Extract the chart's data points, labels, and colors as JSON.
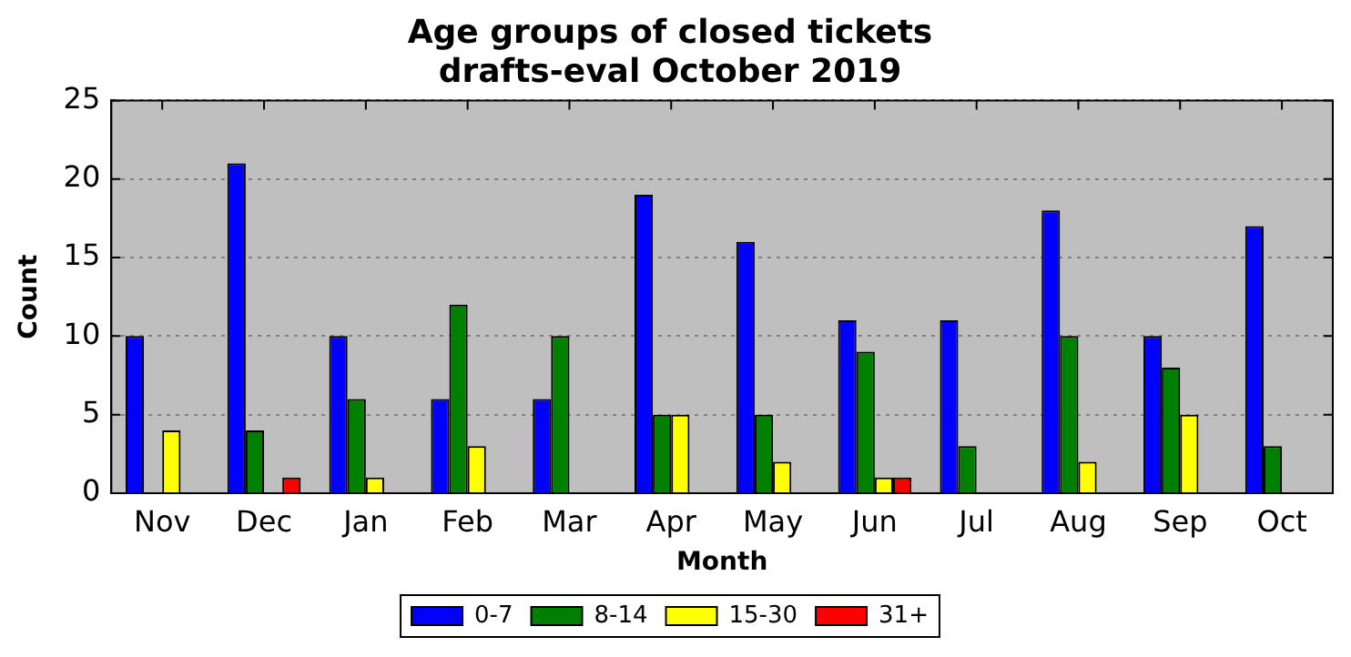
{
  "chart_data": {
    "type": "bar",
    "title": [
      "Age groups of closed tickets",
      "drafts-eval October 2019"
    ],
    "xlabel": "Month",
    "ylabel": "Count",
    "categories": [
      "Nov",
      "Dec",
      "Jan",
      "Feb",
      "Mar",
      "Apr",
      "May",
      "Jun",
      "Jul",
      "Aug",
      "Sep",
      "Oct"
    ],
    "series": [
      {
        "name": "0-7",
        "color": "#0000ff",
        "values": [
          10,
          21,
          10,
          6,
          6,
          19,
          16,
          11,
          11,
          18,
          10,
          17
        ]
      },
      {
        "name": "8-14",
        "color": "#008000",
        "values": [
          0,
          4,
          6,
          12,
          10,
          5,
          5,
          9,
          3,
          10,
          8,
          3
        ]
      },
      {
        "name": "15-30",
        "color": "#ffff00",
        "values": [
          4,
          0,
          1,
          3,
          0,
          5,
          2,
          1,
          0,
          2,
          5,
          0
        ]
      },
      {
        "name": "31+",
        "color": "#ff0000",
        "values": [
          0,
          1,
          0,
          0,
          0,
          0,
          0,
          1,
          0,
          0,
          0,
          0
        ]
      }
    ],
    "ylim": [
      0,
      25
    ],
    "yticks": [
      0,
      5,
      10,
      15,
      20,
      25
    ],
    "grid": "y",
    "legend": "bottom"
  }
}
